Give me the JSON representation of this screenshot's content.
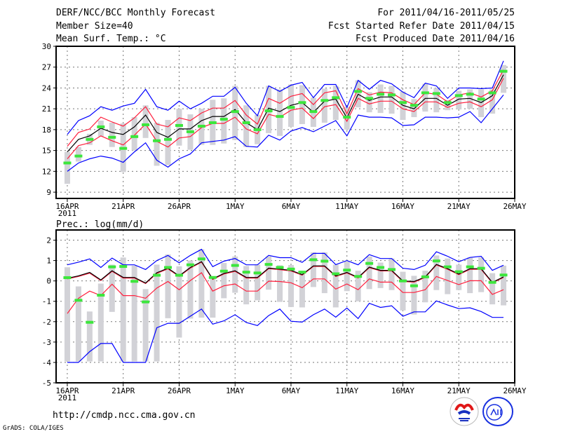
{
  "header": {
    "title": "DERF/NCC/BCC Monthly Forecast",
    "member_size": "Member Size=40",
    "variable": "Mean Surf. Temp.: °C",
    "period": "For 2011/04/16-2011/05/25",
    "started": "Fcst Started Refer Date 2011/04/15",
    "produced": "Fcst Produced Date 2011/04/16"
  },
  "footer": {
    "url": "http://cmdp.ncc.cma.gov.cn",
    "credit": "GrADS: COLA/IGES",
    "logos": [
      "BCC",
      "NCC"
    ]
  },
  "colors": {
    "mean": "#000000",
    "spread": "#ff1e3c",
    "extreme": "#0000ff",
    "obs": "#3ce63c",
    "range": "#d2d2d7",
    "grid": "#777777"
  },
  "chart_data": [
    {
      "type": "line",
      "title": "Mean Surf. Temp.: °C",
      "x_start": "16APR 2011",
      "xlim": [
        -1,
        40
      ],
      "x_ticks": [
        {
          "day": 0,
          "label": "16APR",
          "sub": "2011"
        },
        {
          "day": 5,
          "label": "21APR"
        },
        {
          "day": 10,
          "label": "26APR"
        },
        {
          "day": 15,
          "label": "1MAY"
        },
        {
          "day": 20,
          "label": "6MAY"
        },
        {
          "day": 25,
          "label": "11MAY"
        },
        {
          "day": 30,
          "label": "16MAY"
        },
        {
          "day": 35,
          "label": "21MAY"
        },
        {
          "day": 40,
          "label": "26MAY"
        }
      ],
      "ylim": [
        8.1,
        30
      ],
      "y_ticks": [
        9,
        12,
        15,
        18,
        21,
        24,
        27,
        30
      ],
      "grid": true,
      "series": [
        {
          "name": "ensemble max",
          "color_key": "extreme",
          "values": [
            17.3,
            19.3,
            20.0,
            21.3,
            20.8,
            21.4,
            21.8,
            23.8,
            21.3,
            20.8,
            22.1,
            21.0,
            21.8,
            22.8,
            22.8,
            24.1,
            21.8,
            20.0,
            24.3,
            23.5,
            24.4,
            24.8,
            22.6,
            24.5,
            24.5,
            21.2,
            25.1,
            23.8,
            25.1,
            24.6,
            23.4,
            22.6,
            24.7,
            24.3,
            22.5,
            24.0,
            24.0,
            23.9,
            24.0,
            27.9
          ]
        },
        {
          "name": "mean + spread",
          "color_key": "spread",
          "values": [
            15.6,
            17.6,
            18.1,
            19.8,
            19.1,
            18.5,
            19.7,
            21.3,
            18.8,
            18.4,
            19.7,
            19.3,
            20.4,
            21.1,
            21.1,
            22.2,
            20.1,
            18.8,
            22.5,
            21.8,
            22.8,
            23.2,
            21.6,
            23.3,
            23.6,
            20.3,
            23.9,
            23.0,
            23.4,
            23.3,
            22.3,
            21.6,
            23.3,
            23.1,
            22.0,
            23.0,
            23.3,
            22.7,
            23.6,
            26.6
          ]
        },
        {
          "name": "ensemble mean",
          "color_key": "mean",
          "values": [
            14.8,
            16.6,
            17.1,
            18.2,
            17.6,
            17.3,
            18.4,
            20.1,
            17.6,
            16.9,
            18.1,
            18.1,
            19.3,
            19.9,
            19.9,
            20.9,
            19.0,
            18.0,
            21.1,
            20.6,
            21.5,
            21.9,
            20.5,
            22.1,
            22.4,
            19.7,
            23.1,
            22.2,
            22.7,
            22.7,
            21.5,
            21.0,
            22.5,
            22.5,
            21.5,
            22.4,
            22.5,
            21.9,
            22.9,
            25.9
          ]
        },
        {
          "name": "mean - spread",
          "color_key": "spread",
          "values": [
            13.8,
            15.7,
            16.1,
            17.1,
            16.4,
            15.8,
            17.2,
            18.8,
            16.3,
            15.5,
            16.8,
            17.0,
            18.3,
            18.9,
            18.9,
            19.8,
            18.1,
            17.4,
            20.2,
            19.8,
            20.8,
            21.1,
            19.6,
            21.3,
            21.6,
            19.2,
            22.5,
            21.7,
            22.1,
            22.1,
            21.0,
            20.6,
            22.0,
            22.0,
            21.2,
            21.8,
            22.0,
            21.3,
            22.3,
            25.4
          ]
        },
        {
          "name": "ensemble min",
          "color_key": "extreme",
          "values": [
            12.0,
            13.2,
            13.8,
            14.2,
            13.9,
            13.3,
            14.8,
            16.1,
            13.6,
            12.6,
            13.8,
            14.5,
            16.1,
            16.3,
            16.5,
            17.0,
            15.6,
            15.5,
            17.2,
            16.5,
            17.8,
            18.3,
            17.7,
            18.5,
            19.3,
            17.1,
            20.1,
            19.8,
            19.8,
            19.7,
            18.6,
            18.7,
            19.8,
            19.8,
            19.7,
            19.8,
            20.6,
            19.0,
            21.0,
            23.0
          ]
        }
      ],
      "observed": [
        13.2,
        14.2,
        16.6,
        18.4,
        16.9,
        15.3,
        17.0,
        18.7,
        16.4,
        16.6,
        18.6,
        17.7,
        18.5,
        19.0,
        19.5,
        20.6,
        19.0,
        18.0,
        20.7,
        19.9,
        21.2,
        21.9,
        20.6,
        22.2,
        22.6,
        19.8,
        23.5,
        22.5,
        23.1,
        23.0,
        21.9,
        21.5,
        23.3,
        23.2,
        21.9,
        22.9,
        23.1,
        22.4,
        23.3,
        26.4
      ],
      "range_low": [
        10.2,
        13.4,
        15.8,
        17.0,
        15.5,
        11.9,
        15.0,
        16.8,
        12.8,
        12.9,
        15.7,
        15.1,
        15.8,
        15.8,
        16.0,
        16.5,
        15.5,
        15.9,
        17.5,
        17.1,
        18.4,
        18.8,
        18.4,
        19.0,
        19.4,
        18.0,
        21.2,
        20.5,
        20.4,
        20.3,
        19.4,
        19.8,
        20.6,
        20.5,
        20.8,
        20.9,
        21.0,
        19.8,
        20.3,
        23.3
      ],
      "range_high": [
        14.8,
        15.5,
        17.4,
        19.3,
        19.0,
        18.9,
        19.8,
        21.5,
        19.0,
        19.4,
        21.0,
        20.2,
        21.0,
        22.3,
        22.5,
        24.3,
        21.5,
        20.1,
        24.3,
        23.8,
        24.5,
        24.4,
        22.6,
        23.9,
        24.3,
        21.3,
        25.1,
        23.4,
        24.5,
        24.3,
        23.5,
        22.4,
        24.6,
        24.0,
        22.3,
        23.6,
        23.8,
        23.8,
        23.8,
        27.3
      ]
    },
    {
      "type": "line",
      "title": "Prec.: log(mm/d)",
      "x_start": "16APR 2011",
      "xlim": [
        -1,
        40
      ],
      "x_ticks": [
        {
          "day": 0,
          "label": "16APR",
          "sub": "2011"
        },
        {
          "day": 5,
          "label": "21APR"
        },
        {
          "day": 10,
          "label": "26APR"
        },
        {
          "day": 15,
          "label": "1MAY"
        },
        {
          "day": 20,
          "label": "6MAY"
        },
        {
          "day": 25,
          "label": "11MAY"
        },
        {
          "day": 30,
          "label": "16MAY"
        },
        {
          "day": 35,
          "label": "21MAY"
        },
        {
          "day": 40,
          "label": "26MAY"
        }
      ],
      "ylim": [
        -5,
        2.5
      ],
      "y_ticks": [
        -5,
        -4,
        -3,
        -2,
        -1,
        0,
        1,
        2
      ],
      "grid": true,
      "series": [
        {
          "name": "ensemble max",
          "color_key": "extreme",
          "values": [
            0.79,
            0.92,
            1.08,
            0.66,
            1.12,
            0.79,
            0.79,
            0.56,
            1.0,
            1.25,
            0.89,
            1.25,
            1.55,
            0.7,
            0.97,
            1.1,
            0.79,
            0.79,
            1.25,
            1.14,
            1.14,
            0.91,
            1.35,
            1.35,
            0.8,
            1.0,
            0.79,
            1.29,
            1.1,
            1.1,
            0.62,
            0.56,
            0.77,
            1.43,
            1.21,
            0.94,
            1.15,
            1.21,
            0.52,
            0.77
          ]
        },
        {
          "name": "mean + spread",
          "color_key": "spread",
          "values": [
            0.1,
            0.22,
            0.38,
            0.02,
            0.47,
            0.14,
            0.14,
            -0.13,
            0.37,
            0.59,
            0.22,
            0.63,
            0.92,
            0.07,
            0.34,
            0.47,
            0.14,
            0.14,
            0.6,
            0.55,
            0.49,
            0.28,
            0.71,
            0.71,
            0.22,
            0.39,
            0.14,
            0.65,
            0.49,
            0.49,
            -0.03,
            -0.06,
            0.17,
            0.78,
            0.57,
            0.31,
            0.57,
            0.57,
            -0.1,
            0.17
          ]
        },
        {
          "name": "ensemble mean",
          "color_key": "mean",
          "values": [
            0.13,
            0.25,
            0.42,
            0.05,
            0.5,
            0.17,
            0.17,
            -0.1,
            0.4,
            0.62,
            0.25,
            0.66,
            0.95,
            0.1,
            0.37,
            0.5,
            0.17,
            0.17,
            0.63,
            0.58,
            0.52,
            0.31,
            0.74,
            0.74,
            0.25,
            0.42,
            0.17,
            0.68,
            0.52,
            0.52,
            0.0,
            -0.03,
            0.2,
            0.81,
            0.6,
            0.34,
            0.6,
            0.6,
            -0.07,
            0.2
          ]
        },
        {
          "name": "mean - spread",
          "color_key": "spread",
          "values": [
            -1.6,
            -0.85,
            -0.5,
            -0.72,
            -0.16,
            -0.72,
            -0.72,
            -0.85,
            -0.35,
            -0.03,
            -0.43,
            0.02,
            0.4,
            -0.5,
            -0.24,
            -0.15,
            -0.5,
            -0.5,
            -0.01,
            -0.03,
            -0.09,
            -0.33,
            0.1,
            0.1,
            -0.4,
            -0.15,
            -0.43,
            0.1,
            -0.06,
            -0.06,
            -0.57,
            -0.57,
            -0.43,
            0.22,
            0.02,
            -0.18,
            0.01,
            0.01,
            -0.66,
            -0.43
          ]
        },
        {
          "name": "ensemble min",
          "color_key": "extreme",
          "values": [
            -4.0,
            -4.0,
            -3.47,
            -3.07,
            -3.07,
            -4.0,
            -4.0,
            -4.0,
            -2.3,
            -2.08,
            -2.08,
            -1.73,
            -1.38,
            -2.12,
            -1.96,
            -1.66,
            -2.04,
            -2.19,
            -1.7,
            -1.38,
            -1.98,
            -2.02,
            -1.66,
            -1.38,
            -1.78,
            -1.33,
            -1.85,
            -1.1,
            -1.3,
            -1.22,
            -1.73,
            -1.52,
            -1.52,
            -0.98,
            -1.18,
            -1.36,
            -1.32,
            -1.5,
            -1.79,
            -1.79
          ]
        }
      ],
      "observed": [
        0.16,
        -0.95,
        -2.03,
        -0.7,
        0.69,
        0.71,
        -0.02,
        -1.03,
        0.28,
        0.66,
        0.28,
        0.79,
        1.08,
        0.17,
        0.48,
        0.76,
        0.43,
        0.39,
        0.81,
        0.66,
        0.58,
        0.43,
        1.04,
        0.97,
        0.35,
        0.53,
        0.22,
        0.86,
        0.66,
        0.56,
        0.0,
        -0.24,
        0.2,
        0.98,
        0.69,
        0.45,
        0.69,
        0.62,
        -0.07,
        0.29
      ],
      "range_low": [
        -3.95,
        -3.95,
        -3.95,
        -3.95,
        -1.52,
        -3.95,
        -3.95,
        -3.95,
        -3.95,
        -1.83,
        -2.78,
        -1.85,
        -1.8,
        -1.8,
        -0.85,
        -0.58,
        -1.15,
        -0.95,
        -0.43,
        -1.03,
        -1.28,
        -1.3,
        -0.3,
        -0.6,
        -1.3,
        -0.5,
        -1.0,
        -0.4,
        -0.35,
        -0.45,
        -1.45,
        -1.65,
        -1.05,
        -0.45,
        -0.65,
        -0.45,
        -0.6,
        -0.55,
        -1.15,
        -1.2
      ],
      "range_high": [
        0.67,
        -0.27,
        -1.5,
        -0.13,
        0.8,
        1.15,
        0.75,
        -0.4,
        0.8,
        1.3,
        0.72,
        1.0,
        1.55,
        0.2,
        0.88,
        1.2,
        0.73,
        0.8,
        1.2,
        0.77,
        0.78,
        0.5,
        1.4,
        1.4,
        0.8,
        0.95,
        0.5,
        1.2,
        0.9,
        1.1,
        0.45,
        0.25,
        0.5,
        1.25,
        1.1,
        0.8,
        1.15,
        1.15,
        0.38,
        0.75
      ]
    }
  ]
}
